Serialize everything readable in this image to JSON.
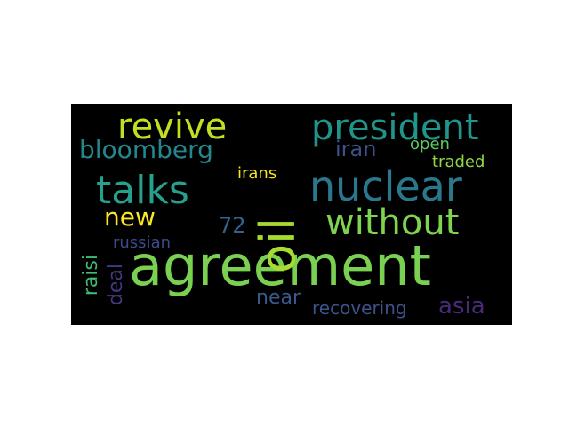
{
  "words": [
    {
      "text": "agreement",
      "color": "#7ad151"
    },
    {
      "text": "oil",
      "color": "#a6db2f"
    },
    {
      "text": "nuclear",
      "color": "#2a788e"
    },
    {
      "text": "talks",
      "color": "#25a18e"
    },
    {
      "text": "president",
      "color": "#1f958b"
    },
    {
      "text": "revive",
      "color": "#c2df23"
    },
    {
      "text": "without",
      "color": "#7fd34e"
    },
    {
      "text": "new",
      "color": "#fde725"
    },
    {
      "text": "bloomberg",
      "color": "#24878e"
    },
    {
      "text": "iran",
      "color": "#3b528b"
    },
    {
      "text": "open",
      "color": "#5ec962"
    },
    {
      "text": "traded",
      "color": "#90d743"
    },
    {
      "text": "irans",
      "color": "#f3e51e"
    },
    {
      "text": "72",
      "color": "#33628d"
    },
    {
      "text": "russian",
      "color": "#3e4989"
    },
    {
      "text": "raisi",
      "color": "#3fbc73"
    },
    {
      "text": "deal",
      "color": "#443983"
    },
    {
      "text": "near",
      "color": "#38598c"
    },
    {
      "text": "recovering",
      "color": "#3b528b"
    },
    {
      "text": "asia",
      "color": "#472a7a"
    }
  ]
}
